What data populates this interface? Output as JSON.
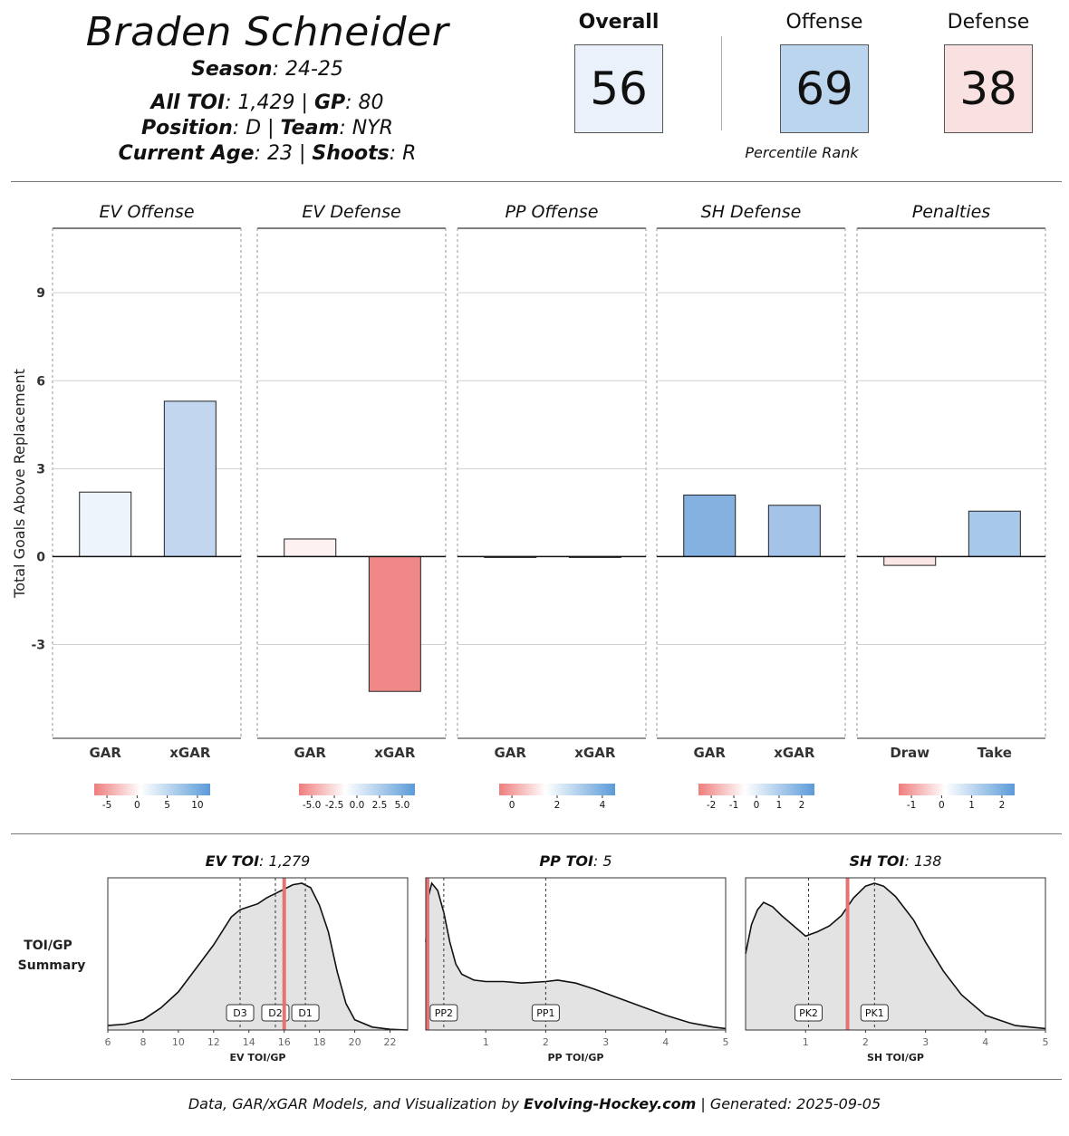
{
  "header": {
    "player_name": "Braden Schneider",
    "season_label": "Season",
    "season_value": ": 24-25",
    "toi_label": "All TOI",
    "toi_value": ": 1,429 | ",
    "gp_label": "GP",
    "gp_value": ": 80",
    "position_label": "Position",
    "position_value": ": D | ",
    "team_label": "Team",
    "team_value": ": NYR",
    "age_label": "Current Age",
    "age_value": ": 23 | ",
    "shoots_label": "Shoots",
    "shoots_value": ": R"
  },
  "ranks": {
    "overall_label": "Overall",
    "overall_value": "56",
    "offense_label": "Offense",
    "offense_value": "69",
    "defense_label": "Defense",
    "defense_value": "38",
    "caption": "Percentile Rank",
    "colors": {
      "overall": "#eaf1fa",
      "offense": "#bcd5ee",
      "defense": "#f9e1e1"
    }
  },
  "chart_data": [
    {
      "type": "bar",
      "ylabel": "Total Goals Above Replacement",
      "ylim": [
        -6.2,
        11.2
      ],
      "yticks": [
        -3,
        0,
        3,
        6,
        9
      ],
      "grid": true,
      "panels": [
        {
          "title": "EV Offense",
          "categories": [
            "GAR",
            "xGAR"
          ],
          "values": [
            2.2,
            5.3
          ],
          "colors": [
            "#eef4fb",
            "#c2d7ef"
          ],
          "legend_ticks": [
            "-5",
            "0",
            "5",
            "10"
          ]
        },
        {
          "title": "EV Defense",
          "categories": [
            "GAR",
            "xGAR"
          ],
          "values": [
            0.6,
            -4.6
          ],
          "colors": [
            "#fdf1f1",
            "#f08888"
          ],
          "legend_ticks": [
            "-5.0",
            "-2.5",
            "0.0",
            "2.5",
            "5.0"
          ]
        },
        {
          "title": "PP Offense",
          "categories": [
            "GAR",
            "xGAR"
          ],
          "values": [
            -0.03,
            0.0
          ],
          "colors": [
            "#fdf5f5",
            "#ffffff"
          ],
          "legend_ticks": [
            "0",
            "2",
            "4"
          ]
        },
        {
          "title": "SH Defense",
          "categories": [
            "GAR",
            "xGAR"
          ],
          "values": [
            2.1,
            1.75
          ],
          "colors": [
            "#84b1df",
            "#a3c3e8"
          ],
          "legend_ticks": [
            "-2",
            "-1",
            "0",
            "1",
            "2"
          ]
        },
        {
          "title": "Penalties",
          "categories": [
            "Draw",
            "Take"
          ],
          "values": [
            -0.3,
            1.55
          ],
          "colors": [
            "#fbe5e5",
            "#a8c8ea"
          ],
          "legend_ticks": [
            "-1",
            "0",
            "1",
            "2"
          ]
        }
      ]
    },
    {
      "type": "area",
      "row_label": [
        "TOI/GP",
        "Summary"
      ],
      "panels": [
        {
          "title_bold": "EV TOI",
          "title_rest": ": 1,279",
          "xlabel": "EV TOI/GP",
          "xlim": [
            6,
            23
          ],
          "xticks": [
            "6",
            "8",
            "10",
            "12",
            "14",
            "16",
            "18",
            "20",
            "22"
          ],
          "player_value": 16.0,
          "density_x": [
            6,
            7,
            8,
            9,
            10,
            11,
            12,
            13,
            13.5,
            14,
            14.5,
            15,
            15.5,
            16,
            16.5,
            17,
            17.5,
            18,
            18.5,
            19,
            19.5,
            20,
            21,
            22,
            23
          ],
          "density_y": [
            0.03,
            0.04,
            0.07,
            0.15,
            0.26,
            0.42,
            0.58,
            0.77,
            0.82,
            0.84,
            0.86,
            0.9,
            0.93,
            0.96,
            0.99,
            1.0,
            0.97,
            0.85,
            0.67,
            0.4,
            0.18,
            0.07,
            0.02,
            0.005,
            0.0
          ],
          "refs": [
            {
              "label": "D3",
              "x": 13.5
            },
            {
              "label": "D2",
              "x": 15.5
            },
            {
              "label": "D1",
              "x": 17.2
            }
          ]
        },
        {
          "title_bold": "PP TOI",
          "title_rest": ": 5",
          "xlabel": "PP TOI/GP",
          "xlim": [
            0,
            5
          ],
          "xticks": [
            "1",
            "2",
            "3",
            "4",
            "5"
          ],
          "player_value": 0.03,
          "density_x": [
            0,
            0.05,
            0.1,
            0.2,
            0.3,
            0.4,
            0.5,
            0.6,
            0.8,
            1.0,
            1.3,
            1.6,
            2.0,
            2.2,
            2.5,
            2.8,
            3.2,
            3.6,
            4.0,
            4.4,
            4.8,
            5.0
          ],
          "density_y": [
            0.6,
            0.92,
            1.0,
            0.95,
            0.8,
            0.6,
            0.45,
            0.38,
            0.34,
            0.33,
            0.33,
            0.32,
            0.33,
            0.34,
            0.32,
            0.28,
            0.22,
            0.16,
            0.1,
            0.05,
            0.02,
            0.01
          ],
          "refs": [
            {
              "label": "PP2",
              "x": 0.3
            },
            {
              "label": "PP1",
              "x": 2.0
            }
          ]
        },
        {
          "title_bold": "SH TOI",
          "title_rest": ": 138",
          "xlabel": "SH TOI/GP",
          "xlim": [
            0,
            5
          ],
          "xticks": [
            "1",
            "2",
            "3",
            "4",
            "5"
          ],
          "player_value": 1.7,
          "density_x": [
            0,
            0.1,
            0.2,
            0.3,
            0.45,
            0.6,
            0.8,
            1.0,
            1.2,
            1.4,
            1.6,
            1.8,
            2.0,
            2.15,
            2.3,
            2.5,
            2.8,
            3.0,
            3.3,
            3.6,
            4.0,
            4.5,
            5.0
          ],
          "density_y": [
            0.52,
            0.72,
            0.82,
            0.87,
            0.84,
            0.78,
            0.71,
            0.64,
            0.67,
            0.71,
            0.78,
            0.9,
            0.98,
            1.0,
            0.98,
            0.91,
            0.75,
            0.6,
            0.4,
            0.24,
            0.1,
            0.03,
            0.01
          ],
          "refs": [
            {
              "label": "PK2",
              "x": 1.05
            },
            {
              "label": "PK1",
              "x": 2.15
            }
          ]
        }
      ]
    }
  ],
  "footer": {
    "pre": "Data, GAR/xGAR Models, and Visualization by ",
    "site": "Evolving-Hockey.com",
    "post": " | Generated: 2025-09-05"
  }
}
